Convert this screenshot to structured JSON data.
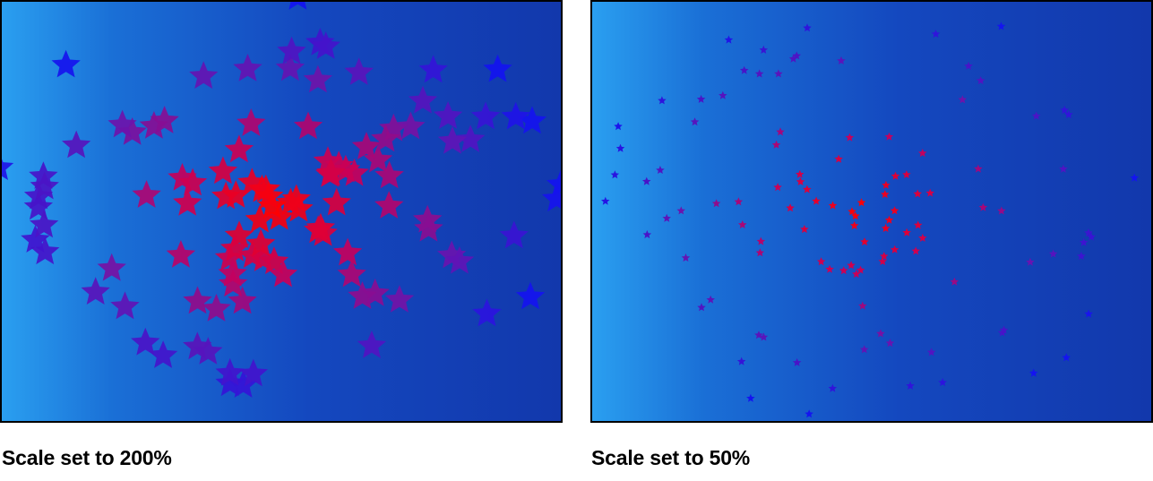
{
  "figures": [
    {
      "caption": "Scale set to 200%",
      "scale_percent": 200
    },
    {
      "caption": "Scale set to 50%",
      "scale_percent": 50
    }
  ],
  "colors": {
    "background_light": "#2a9ff0",
    "background_dark": "#1238ac",
    "star_center": "#ff0000",
    "star_mid": "#6a16b0",
    "star_outer": "#1010f0"
  }
}
